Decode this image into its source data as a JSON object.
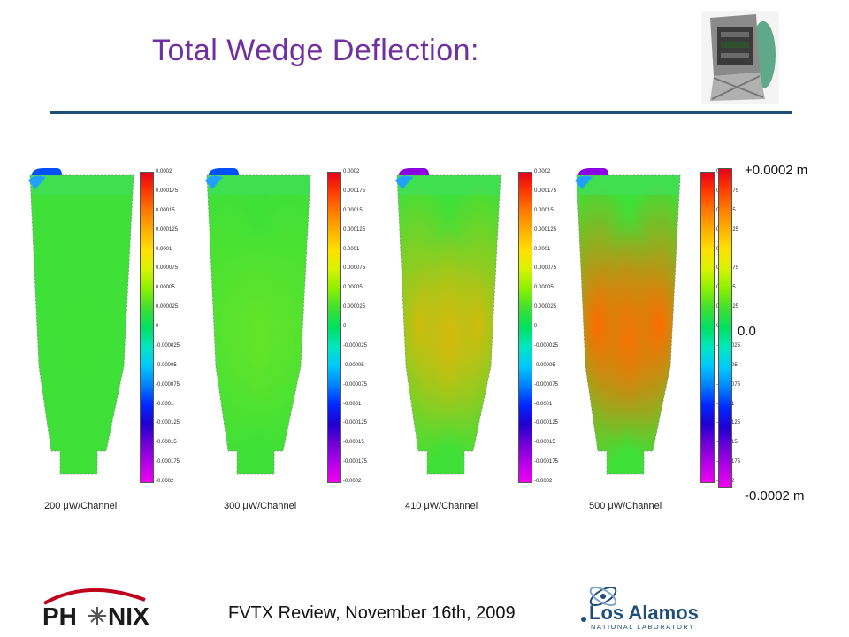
{
  "slide": {
    "title": "Total Wedge Deflection:",
    "footer": "FVTX Review, November 16th, 2009"
  },
  "colorbar": {
    "ticks": [
      "0.0002",
      "0.000175",
      "0.00015",
      "0.000125",
      "0.0001",
      "0.000075",
      "0.00005",
      "0.000025",
      "0",
      "-0.000025",
      "-0.00005",
      "-0.000075",
      "-0.0001",
      "-0.000125",
      "-0.00015",
      "-0.000175",
      "-0.0002"
    ],
    "colors": [
      "#e8001a",
      "#ff3c00",
      "#ff7a00",
      "#ffb000",
      "#ffe000",
      "#d8f200",
      "#8cf000",
      "#40e030",
      "#00e060",
      "#00e8c0",
      "#00c8ff",
      "#0080ff",
      "#0028ff",
      "#2000d0",
      "#7000d8",
      "#b400e8",
      "#f000f0"
    ]
  },
  "scale": {
    "max_label": "+0.0002 m",
    "mid_label": "0.0",
    "min_label": "-0.0002 m"
  },
  "panels": [
    {
      "caption": "200 μW/Channel",
      "deflection_level": 0.05
    },
    {
      "caption": "300 μW/Channel",
      "deflection_level": 0.25
    },
    {
      "caption": "410 μW/Channel",
      "deflection_level": 0.65
    },
    {
      "caption": "500 μW/Channel",
      "deflection_level": 0.9
    }
  ],
  "logos": {
    "phenix": "PHENIX",
    "lanl_main": "Los Alamos",
    "lanl_sub": "NATIONAL LABORATORY"
  },
  "icons": {
    "detector_thumbnail": "detector-render-icon"
  }
}
